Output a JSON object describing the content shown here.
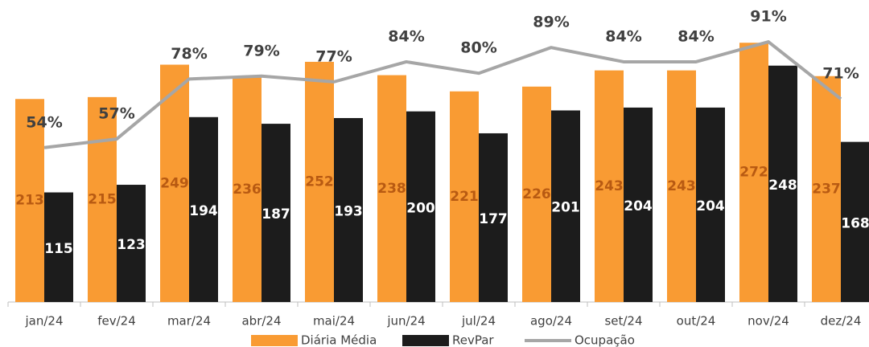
{
  "chart_data": {
    "type": "bar",
    "categories": [
      "jan/24",
      "fev/24",
      "mar/24",
      "abr/24",
      "mai/24",
      "jun/24",
      "jul/24",
      "ago/24",
      "set/24",
      "out/24",
      "nov/24",
      "dez/24"
    ],
    "series": [
      {
        "name": "Diária Média",
        "color": "#F99B33",
        "values": [
          213,
          215,
          249,
          236,
          252,
          238,
          221,
          226,
          243,
          243,
          272,
          237
        ]
      },
      {
        "name": "RevPar",
        "color": "#1C1C1C",
        "values": [
          115,
          123,
          194,
          187,
          193,
          200,
          177,
          201,
          204,
          204,
          248,
          168
        ]
      },
      {
        "name": "Ocupação",
        "type": "line",
        "axis": "y2",
        "color": "#A6A6A6",
        "values": [
          54,
          57,
          78,
          79,
          77,
          84,
          80,
          89,
          84,
          84,
          91,
          71
        ],
        "value_labels": [
          "54%",
          "57%",
          "78%",
          "79%",
          "77%",
          "84%",
          "80%",
          "89%",
          "84%",
          "84%",
          "91%",
          "71%"
        ]
      }
    ],
    "ylim": [
      0,
      300
    ],
    "y2lim": [
      0,
      100
    ]
  }
}
